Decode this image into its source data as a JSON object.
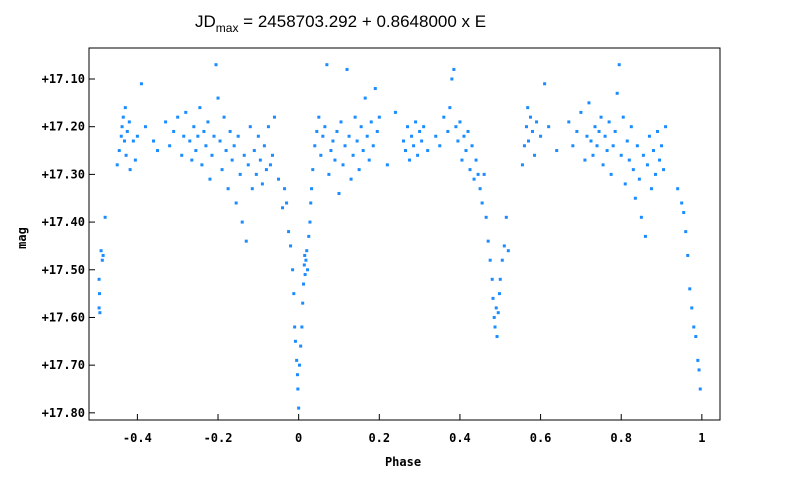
{
  "chart_data": {
    "type": "scatter",
    "title_main": "JD",
    "title_sub": "max",
    "title_rest": " = 2458703.292 + 0.8648000 x E",
    "xlabel": "Phase",
    "ylabel": "mag",
    "xlim": [
      -0.52,
      1.045
    ],
    "ylim": [
      17.815,
      17.035
    ],
    "y_inverted": true,
    "x_ticks": [
      -0.4,
      -0.2,
      0,
      0.2,
      0.4,
      0.6,
      0.8,
      1
    ],
    "x_tick_labels": [
      "-0.4",
      "-0.2",
      "0",
      "0.2",
      "0.4",
      "0.6",
      "0.8",
      "1"
    ],
    "y_ticks": [
      17.1,
      17.2,
      17.3,
      17.4,
      17.5,
      17.6,
      17.7,
      17.8
    ],
    "y_tick_labels": [
      "+17.10",
      "+17.20",
      "+17.30",
      "+17.40",
      "+17.50",
      "+17.60",
      "+17.70",
      "+17.80"
    ],
    "grid": false,
    "marker_color": "#1a8cff",
    "series": [
      {
        "values": [
          [
            -0.495,
            17.52
          ],
          [
            -0.494,
            17.55
          ],
          [
            -0.495,
            17.58
          ],
          [
            -0.493,
            17.59
          ],
          [
            -0.49,
            17.46
          ],
          [
            -0.487,
            17.48
          ],
          [
            -0.485,
            17.47
          ],
          [
            -0.48,
            17.39
          ],
          [
            -0.45,
            17.28
          ],
          [
            -0.445,
            17.25
          ],
          [
            -0.44,
            17.22
          ],
          [
            -0.438,
            17.2
          ],
          [
            -0.435,
            17.18
          ],
          [
            -0.432,
            17.23
          ],
          [
            -0.43,
            17.16
          ],
          [
            -0.428,
            17.26
          ],
          [
            -0.425,
            17.21
          ],
          [
            -0.42,
            17.19
          ],
          [
            -0.418,
            17.29
          ],
          [
            -0.41,
            17.23
          ],
          [
            -0.405,
            17.27
          ],
          [
            -0.4,
            17.22
          ],
          [
            -0.39,
            17.11
          ],
          [
            -0.38,
            17.2
          ],
          [
            -0.36,
            17.23
          ],
          [
            -0.35,
            17.25
          ],
          [
            -0.33,
            17.19
          ],
          [
            -0.32,
            17.24
          ],
          [
            -0.31,
            17.21
          ],
          [
            -0.3,
            17.18
          ],
          [
            -0.29,
            17.26
          ],
          [
            -0.285,
            17.22
          ],
          [
            -0.28,
            17.17
          ],
          [
            -0.27,
            17.23
          ],
          [
            -0.265,
            17.27
          ],
          [
            -0.26,
            17.2
          ],
          [
            -0.255,
            17.25
          ],
          [
            -0.25,
            17.22
          ],
          [
            -0.245,
            17.16
          ],
          [
            -0.24,
            17.28
          ],
          [
            -0.235,
            17.21
          ],
          [
            -0.23,
            17.24
          ],
          [
            -0.225,
            17.19
          ],
          [
            -0.22,
            17.31
          ],
          [
            -0.215,
            17.26
          ],
          [
            -0.21,
            17.22
          ],
          [
            -0.205,
            17.07
          ],
          [
            -0.2,
            17.14
          ],
          [
            -0.195,
            17.23
          ],
          [
            -0.19,
            17.29
          ],
          [
            -0.185,
            17.18
          ],
          [
            -0.18,
            17.25
          ],
          [
            -0.175,
            17.33
          ],
          [
            -0.17,
            17.21
          ],
          [
            -0.165,
            17.27
          ],
          [
            -0.16,
            17.24
          ],
          [
            -0.155,
            17.36
          ],
          [
            -0.15,
            17.22
          ],
          [
            -0.145,
            17.3
          ],
          [
            -0.14,
            17.4
          ],
          [
            -0.135,
            17.26
          ],
          [
            -0.13,
            17.44
          ],
          [
            -0.125,
            17.28
          ],
          [
            -0.12,
            17.2
          ],
          [
            -0.115,
            17.33
          ],
          [
            -0.11,
            17.25
          ],
          [
            -0.105,
            17.3
          ],
          [
            -0.1,
            17.22
          ],
          [
            -0.095,
            17.27
          ],
          [
            -0.09,
            17.32
          ],
          [
            -0.085,
            17.24
          ],
          [
            -0.08,
            17.29
          ],
          [
            -0.075,
            17.2
          ],
          [
            -0.07,
            17.28
          ],
          [
            -0.065,
            17.26
          ],
          [
            -0.06,
            17.18
          ],
          [
            -0.05,
            17.31
          ],
          [
            -0.04,
            17.37
          ],
          [
            -0.035,
            17.33
          ],
          [
            -0.03,
            17.36
          ],
          [
            -0.025,
            17.42
          ],
          [
            -0.02,
            17.45
          ],
          [
            -0.015,
            17.5
          ],
          [
            -0.012,
            17.55
          ],
          [
            -0.01,
            17.62
          ],
          [
            -0.008,
            17.65
          ],
          [
            -0.005,
            17.69
          ],
          [
            -0.003,
            17.72
          ],
          [
            -0.002,
            17.75
          ],
          [
            0.0,
            17.79
          ],
          [
            0.002,
            17.7
          ],
          [
            0.005,
            17.66
          ],
          [
            0.008,
            17.62
          ],
          [
            0.01,
            17.57
          ],
          [
            0.012,
            17.53
          ],
          [
            0.014,
            17.49
          ],
          [
            0.015,
            17.47
          ],
          [
            0.016,
            17.51
          ],
          [
            0.018,
            17.48
          ],
          [
            0.02,
            17.46
          ],
          [
            0.022,
            17.5
          ],
          [
            0.025,
            17.43
          ],
          [
            0.028,
            17.4
          ],
          [
            0.03,
            17.36
          ],
          [
            0.032,
            17.33
          ],
          [
            0.035,
            17.29
          ],
          [
            0.04,
            17.24
          ],
          [
            0.045,
            17.21
          ],
          [
            0.05,
            17.18
          ],
          [
            0.055,
            17.26
          ],
          [
            0.06,
            17.22
          ],
          [
            0.065,
            17.2
          ],
          [
            0.07,
            17.07
          ],
          [
            0.075,
            17.3
          ],
          [
            0.08,
            17.25
          ],
          [
            0.085,
            17.23
          ],
          [
            0.09,
            17.27
          ],
          [
            0.095,
            17.21
          ],
          [
            0.1,
            17.34
          ],
          [
            0.105,
            17.19
          ],
          [
            0.11,
            17.28
          ],
          [
            0.115,
            17.24
          ],
          [
            0.12,
            17.08
          ],
          [
            0.125,
            17.22
          ],
          [
            0.13,
            17.31
          ],
          [
            0.135,
            17.26
          ],
          [
            0.14,
            17.18
          ],
          [
            0.145,
            17.23
          ],
          [
            0.15,
            17.29
          ],
          [
            0.155,
            17.2
          ],
          [
            0.16,
            17.25
          ],
          [
            0.165,
            17.14
          ],
          [
            0.17,
            17.22
          ],
          [
            0.175,
            17.27
          ],
          [
            0.18,
            17.19
          ],
          [
            0.185,
            17.24
          ],
          [
            0.19,
            17.12
          ],
          [
            0.195,
            17.21
          ],
          [
            0.2,
            17.18
          ],
          [
            0.22,
            17.28
          ],
          [
            0.24,
            17.17
          ],
          [
            0.26,
            17.23
          ],
          [
            0.265,
            17.25
          ],
          [
            0.27,
            17.2
          ],
          [
            0.275,
            17.27
          ],
          [
            0.28,
            17.22
          ],
          [
            0.285,
            17.24
          ],
          [
            0.29,
            17.19
          ],
          [
            0.295,
            17.26
          ],
          [
            0.3,
            17.21
          ],
          [
            0.305,
            17.23
          ],
          [
            0.31,
            17.2
          ],
          [
            0.32,
            17.25
          ],
          [
            0.34,
            17.22
          ],
          [
            0.35,
            17.24
          ],
          [
            0.36,
            17.18
          ],
          [
            0.37,
            17.21
          ],
          [
            0.375,
            17.16
          ],
          [
            0.38,
            17.1
          ],
          [
            0.385,
            17.08
          ],
          [
            0.39,
            17.2
          ],
          [
            0.395,
            17.23
          ],
          [
            0.4,
            17.19
          ],
          [
            0.405,
            17.27
          ],
          [
            0.41,
            17.22
          ],
          [
            0.415,
            17.25
          ],
          [
            0.42,
            17.21
          ],
          [
            0.425,
            17.29
          ],
          [
            0.43,
            17.24
          ],
          [
            0.435,
            17.31
          ],
          [
            0.44,
            17.27
          ],
          [
            0.445,
            17.3
          ],
          [
            0.45,
            17.33
          ],
          [
            0.455,
            17.36
          ],
          [
            0.46,
            17.3
          ],
          [
            0.465,
            17.39
          ],
          [
            0.47,
            17.44
          ],
          [
            0.475,
            17.48
          ],
          [
            0.48,
            17.52
          ],
          [
            0.482,
            17.56
          ],
          [
            0.485,
            17.6
          ],
          [
            0.487,
            17.62
          ],
          [
            0.49,
            17.58
          ],
          [
            0.492,
            17.64
          ],
          [
            0.495,
            17.59
          ],
          [
            0.498,
            17.55
          ],
          [
            0.5,
            17.52
          ],
          [
            0.505,
            17.48
          ],
          [
            0.51,
            17.45
          ],
          [
            0.515,
            17.39
          ],
          [
            0.52,
            17.46
          ],
          [
            0.555,
            17.28
          ],
          [
            0.56,
            17.24
          ],
          [
            0.565,
            17.2
          ],
          [
            0.568,
            17.16
          ],
          [
            0.57,
            17.23
          ],
          [
            0.575,
            17.18
          ],
          [
            0.58,
            17.21
          ],
          [
            0.585,
            17.26
          ],
          [
            0.59,
            17.19
          ],
          [
            0.6,
            17.22
          ],
          [
            0.61,
            17.11
          ],
          [
            0.62,
            17.2
          ],
          [
            0.64,
            17.25
          ],
          [
            0.67,
            17.19
          ],
          [
            0.68,
            17.24
          ],
          [
            0.69,
            17.21
          ],
          [
            0.7,
            17.17
          ],
          [
            0.71,
            17.27
          ],
          [
            0.715,
            17.22
          ],
          [
            0.72,
            17.15
          ],
          [
            0.725,
            17.23
          ],
          [
            0.73,
            17.26
          ],
          [
            0.735,
            17.2
          ],
          [
            0.74,
            17.24
          ],
          [
            0.745,
            17.21
          ],
          [
            0.75,
            17.18
          ],
          [
            0.755,
            17.28
          ],
          [
            0.76,
            17.22
          ],
          [
            0.765,
            17.25
          ],
          [
            0.77,
            17.19
          ],
          [
            0.775,
            17.3
          ],
          [
            0.78,
            17.24
          ],
          [
            0.785,
            17.21
          ],
          [
            0.79,
            17.13
          ],
          [
            0.795,
            17.07
          ],
          [
            0.8,
            17.26
          ],
          [
            0.805,
            17.18
          ],
          [
            0.81,
            17.32
          ],
          [
            0.815,
            17.23
          ],
          [
            0.82,
            17.27
          ],
          [
            0.825,
            17.2
          ],
          [
            0.83,
            17.29
          ],
          [
            0.835,
            17.35
          ],
          [
            0.84,
            17.24
          ],
          [
            0.845,
            17.31
          ],
          [
            0.85,
            17.39
          ],
          [
            0.855,
            17.26
          ],
          [
            0.86,
            17.43
          ],
          [
            0.865,
            17.28
          ],
          [
            0.87,
            17.22
          ],
          [
            0.875,
            17.33
          ],
          [
            0.88,
            17.25
          ],
          [
            0.885,
            17.3
          ],
          [
            0.89,
            17.21
          ],
          [
            0.895,
            17.27
          ],
          [
            0.9,
            17.24
          ],
          [
            0.905,
            17.29
          ],
          [
            0.91,
            17.2
          ],
          [
            0.94,
            17.33
          ],
          [
            0.95,
            17.36
          ],
          [
            0.955,
            17.38
          ],
          [
            0.96,
            17.42
          ],
          [
            0.965,
            17.47
          ],
          [
            0.97,
            17.54
          ],
          [
            0.975,
            17.58
          ],
          [
            0.98,
            17.62
          ],
          [
            0.985,
            17.64
          ],
          [
            0.99,
            17.69
          ],
          [
            0.993,
            17.71
          ],
          [
            0.996,
            17.75
          ]
        ]
      }
    ]
  }
}
